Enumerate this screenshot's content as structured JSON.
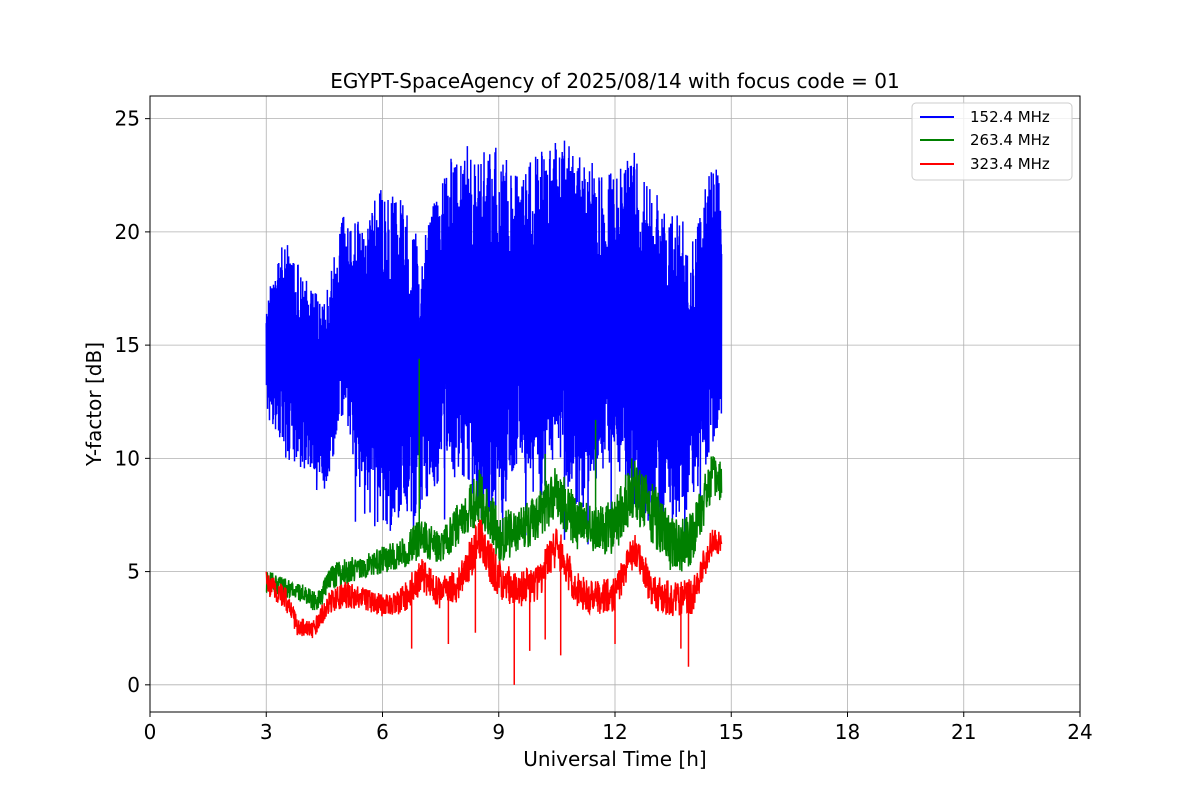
{
  "chart_data": {
    "type": "line",
    "title": "EGYPT-SpaceAgency of 2025/08/14 with focus code = 01",
    "xlabel": "Universal Time [h]",
    "ylabel": "Y-factor [dB]",
    "xlim": [
      0,
      24
    ],
    "ylim": [
      -1.2,
      26
    ],
    "xticks": [
      0,
      3,
      6,
      9,
      12,
      15,
      18,
      21,
      24
    ],
    "yticks": [
      0,
      5,
      10,
      15,
      20,
      25
    ],
    "grid": true,
    "legend_position": "top-right",
    "series": [
      {
        "name": "152.4 MHz",
        "color": "#0000ff",
        "x": [
          3.0,
          3.5,
          4.0,
          4.5,
          5.0,
          5.5,
          6.0,
          6.5,
          7.0,
          7.5,
          8.0,
          8.5,
          9.0,
          9.5,
          10.0,
          10.5,
          11.0,
          11.5,
          12.0,
          12.5,
          13.0,
          13.5,
          14.0,
          14.5,
          14.75
        ],
        "upper": [
          17.0,
          20.0,
          18.0,
          17.0,
          21.0,
          20.5,
          22.0,
          21.5,
          19.5,
          22.5,
          24.2,
          23.5,
          24.0,
          22.5,
          23.5,
          24.5,
          23.5,
          23.0,
          22.5,
          23.5,
          22.0,
          21.0,
          20.0,
          23.0,
          22.5
        ],
        "lower": [
          12.0,
          10.0,
          9.5,
          8.5,
          12.0,
          7.5,
          7.0,
          7.0,
          7.5,
          9.0,
          9.0,
          7.0,
          6.8,
          10.0,
          7.5,
          10.5,
          7.0,
          9.0,
          10.0,
          7.5,
          7.0,
          7.0,
          8.0,
          10.5,
          11.5
        ],
        "spikes_down": [
          [
            4.3,
            8.6
          ],
          [
            5.3,
            7.2
          ],
          [
            5.8,
            7.0
          ],
          [
            6.2,
            6.8
          ],
          [
            6.8,
            6.7
          ],
          [
            7.6,
            7.3
          ],
          [
            8.1,
            9.2
          ],
          [
            8.6,
            7.4
          ],
          [
            9.1,
            6.3
          ],
          [
            9.7,
            6.6
          ],
          [
            10.7,
            6.4
          ],
          [
            11.3,
            6.2
          ],
          [
            11.9,
            7.0
          ],
          [
            12.6,
            7.8
          ],
          [
            13.2,
            6.9
          ],
          [
            13.8,
            6.7
          ],
          [
            14.2,
            7.4
          ]
        ]
      },
      {
        "name": "263.4 MHz",
        "color": "#008000",
        "x": [
          3.0,
          3.5,
          4.0,
          4.3,
          4.7,
          5.0,
          5.5,
          6.0,
          6.5,
          7.0,
          7.5,
          8.0,
          8.5,
          9.0,
          9.5,
          10.0,
          10.5,
          11.0,
          11.5,
          12.0,
          12.5,
          13.0,
          13.5,
          14.0,
          14.5,
          14.75
        ],
        "values": [
          4.6,
          4.3,
          4.0,
          3.6,
          4.8,
          5.0,
          5.2,
          5.5,
          5.8,
          6.5,
          6.0,
          7.2,
          8.3,
          6.5,
          6.8,
          7.3,
          8.6,
          7.2,
          6.8,
          7.0,
          8.8,
          7.5,
          6.0,
          6.5,
          9.2,
          9.0
        ],
        "amp": [
          0.5,
          0.4,
          0.4,
          0.5,
          0.5,
          0.6,
          0.5,
          0.6,
          0.7,
          0.9,
          0.7,
          1.0,
          1.2,
          1.2,
          1.0,
          1.1,
          1.3,
          1.2,
          1.1,
          1.2,
          1.5,
          1.4,
          1.3,
          1.2,
          1.0,
          0.9
        ],
        "spikes_up": [
          [
            6.95,
            14.4
          ],
          [
            11.5,
            11.7
          ],
          [
            8.5,
            8.5
          ],
          [
            10.2,
            10.2
          ]
        ]
      },
      {
        "name": "323.4 MHz",
        "color": "#ff0000",
        "x": [
          3.0,
          3.5,
          3.8,
          4.2,
          4.6,
          5.0,
          5.5,
          6.0,
          6.5,
          7.0,
          7.5,
          8.0,
          8.5,
          9.0,
          9.5,
          10.0,
          10.5,
          11.0,
          11.5,
          12.0,
          12.5,
          13.0,
          13.5,
          14.0,
          14.5,
          14.75
        ],
        "values": [
          4.5,
          3.8,
          2.6,
          2.4,
          3.6,
          4.0,
          3.8,
          3.5,
          3.7,
          4.8,
          4.0,
          4.5,
          6.5,
          4.6,
          4.2,
          4.5,
          6.2,
          4.2,
          3.8,
          4.0,
          6.0,
          4.0,
          3.8,
          3.9,
          6.3,
          6.3
        ],
        "amp": [
          0.5,
          0.5,
          0.4,
          0.4,
          0.5,
          0.6,
          0.5,
          0.5,
          0.6,
          0.8,
          0.7,
          0.8,
          1.0,
          0.9,
          0.8,
          0.8,
          0.9,
          0.8,
          0.8,
          0.8,
          0.8,
          0.8,
          0.8,
          0.8,
          0.6,
          0.5
        ],
        "spikes_down": [
          [
            6.75,
            1.6
          ],
          [
            7.7,
            1.8
          ],
          [
            8.4,
            2.3
          ],
          [
            9.4,
            0.0
          ],
          [
            9.8,
            1.5
          ],
          [
            10.2,
            2.0
          ],
          [
            10.6,
            1.3
          ],
          [
            12.0,
            1.8
          ],
          [
            13.9,
            0.8
          ],
          [
            13.7,
            1.6
          ]
        ]
      }
    ]
  }
}
